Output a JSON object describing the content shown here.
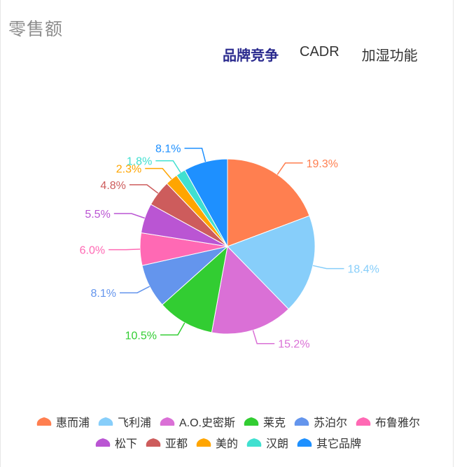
{
  "header": {
    "title": "零售额"
  },
  "tabs": [
    {
      "label": "品牌竞争",
      "active": true
    },
    {
      "label": "CADR",
      "active": false
    },
    {
      "label": "加湿功能",
      "active": false
    }
  ],
  "chart_data": {
    "type": "pie",
    "title": "",
    "categories": [
      "惠而浦",
      "飞利浦",
      "A.O.史密斯",
      "莱克",
      "苏泊尔",
      "布鲁雅尔",
      "松下",
      "亚都",
      "美的",
      "汉朗",
      "其它品牌"
    ],
    "values": [
      19.3,
      18.4,
      15.2,
      10.5,
      8.1,
      6.0,
      5.5,
      4.8,
      2.3,
      1.8,
      8.1
    ],
    "labels": [
      "19.3%",
      "18.4%",
      "15.2%",
      "10.5%",
      "8.1%",
      "6.0%",
      "5.5%",
      "4.8%",
      "2.3%",
      "1.8%",
      "8.1%"
    ],
    "colors": [
      "#ff7f50",
      "#87cefa",
      "#da70d6",
      "#32cd32",
      "#6495ed",
      "#ff69b4",
      "#ba55d3",
      "#cd5c5c",
      "#ffa500",
      "#40e0d0",
      "#1e90ff"
    ],
    "legend_position": "bottom"
  }
}
